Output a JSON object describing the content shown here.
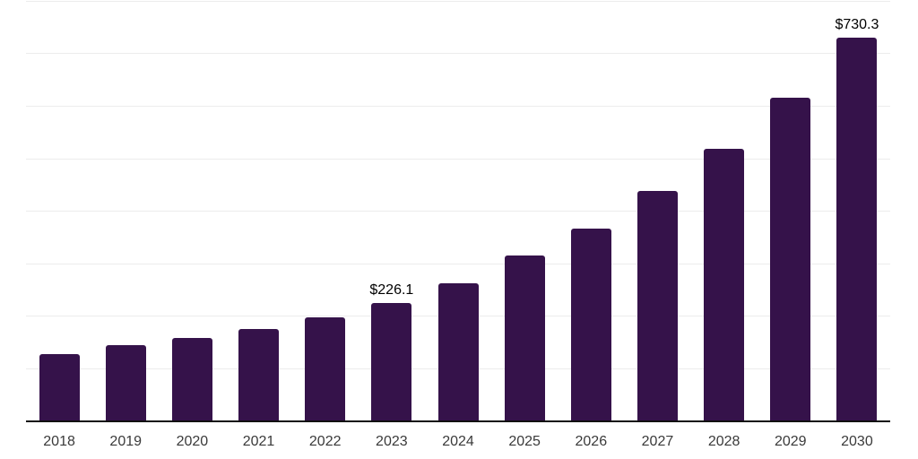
{
  "chart_data": {
    "type": "bar",
    "title": "",
    "xlabel": "",
    "ylabel": "",
    "categories": [
      "2018",
      "2019",
      "2020",
      "2021",
      "2022",
      "2023",
      "2024",
      "2025",
      "2026",
      "2027",
      "2028",
      "2029",
      "2030"
    ],
    "values": [
      127.8,
      144.8,
      159.1,
      176.6,
      197.6,
      226.1,
      262.3,
      316.3,
      366.2,
      438.4,
      519.0,
      615.6,
      730.3
    ],
    "data_labels": [
      {
        "index": 5,
        "text": "$226.1"
      },
      {
        "index": 12,
        "text": "$730.3"
      }
    ],
    "ylim": [
      0,
      800
    ],
    "grid_step": 100,
    "grid_on": true,
    "legend": "none",
    "colors": {
      "bar": "#35124A",
      "gridline": "#ececec",
      "axis_line": "#111111",
      "tick_label": "#3a3a3a",
      "data_label": "#000000",
      "background": "#ffffff"
    }
  }
}
